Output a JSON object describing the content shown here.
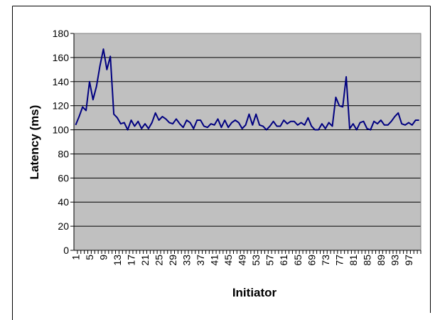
{
  "chart_data": {
    "type": "line",
    "x_label": "Initiator",
    "y_label": "Latency (ms)",
    "categories": [
      1,
      null,
      null,
      null,
      5,
      null,
      null,
      null,
      9,
      null,
      null,
      null,
      13,
      null,
      null,
      null,
      17,
      null,
      null,
      null,
      21,
      null,
      null,
      null,
      25,
      null,
      null,
      null,
      29,
      null,
      null,
      null,
      33,
      null,
      null,
      null,
      37,
      null,
      null,
      null,
      41,
      null,
      null,
      null,
      45,
      null,
      null,
      null,
      49,
      null,
      null,
      null,
      53,
      null,
      null,
      null,
      57,
      null,
      null,
      null,
      61,
      null,
      null,
      null,
      65,
      null,
      null,
      null,
      69,
      null,
      null,
      null,
      73,
      null,
      null,
      null,
      77,
      null,
      null,
      null,
      81,
      null,
      null,
      null,
      85,
      null,
      null,
      null,
      89,
      null,
      null,
      null,
      93,
      null,
      null,
      null,
      97,
      null,
      null,
      null
    ],
    "values": [
      104,
      111,
      119,
      116,
      140,
      125,
      136,
      153,
      167,
      150,
      161,
      113,
      110,
      105,
      106,
      100,
      108,
      103,
      107,
      101,
      105,
      101,
      106,
      114,
      108,
      111,
      109,
      106,
      105,
      109,
      105,
      102,
      108,
      106,
      101,
      108,
      108,
      103,
      102,
      105,
      104,
      109,
      102,
      108,
      102,
      106,
      108,
      106,
      101,
      104,
      113,
      104,
      113,
      104,
      103,
      100,
      103,
      107,
      103,
      103,
      108,
      105,
      107,
      107,
      104,
      106,
      104,
      110,
      103,
      100,
      100,
      105,
      101,
      106,
      103,
      127,
      120,
      119,
      144,
      101,
      105,
      100,
      106,
      107,
      101,
      100,
      107,
      105,
      108,
      104,
      104,
      107,
      111,
      114,
      105,
      104,
      106,
      104,
      108,
      108
    ],
    "color": "#000080",
    "plot_background": "#c0c0c0",
    "ylim": [
      0,
      180
    ],
    "yticks": [
      0,
      20,
      40,
      60,
      80,
      100,
      120,
      140,
      160,
      180
    ],
    "grid": true
  }
}
